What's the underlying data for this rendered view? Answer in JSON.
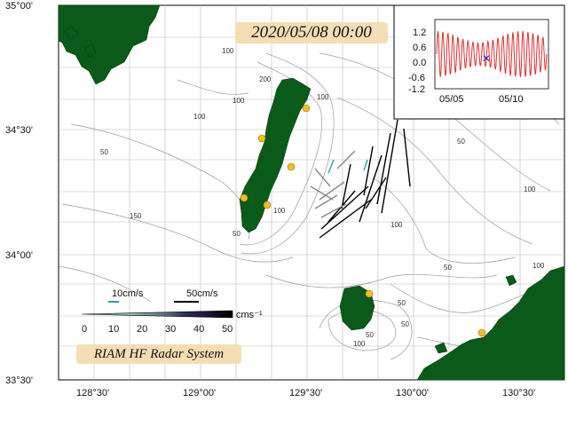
{
  "title_date": "2020/05/08 00:00",
  "system_label": "RIAM HF Radar System",
  "axes": {
    "lat_labels": [
      "35°00'",
      "34°30'",
      "34°00'",
      "33°30'"
    ],
    "lon_labels": [
      "128°30'",
      "129°00'",
      "129°30'",
      "130°00'",
      "130°30'"
    ]
  },
  "contour_labels": [
    "50",
    "100",
    "200",
    "100",
    "100",
    "150",
    "50",
    "100",
    "100",
    "50",
    "100",
    "100",
    "50",
    "50",
    "50",
    "100",
    "100",
    "50"
  ],
  "legend": {
    "ref_small": "10cm/s",
    "ref_large": "50cm/s",
    "unit": "cms⁻¹",
    "scale": [
      "0",
      "10",
      "20",
      "30",
      "40",
      "50"
    ]
  },
  "inset": {
    "y_ticks": [
      "1.2",
      "0.6",
      "0.0",
      "-0.6",
      "-1.2"
    ],
    "x_ticks": [
      "05/05",
      "05/10"
    ],
    "series_color": "#e03030",
    "marker_color": "#2030c0"
  },
  "colors": {
    "land": "#0a5a1a",
    "station": "#f0c020",
    "contour": "#999999"
  }
}
